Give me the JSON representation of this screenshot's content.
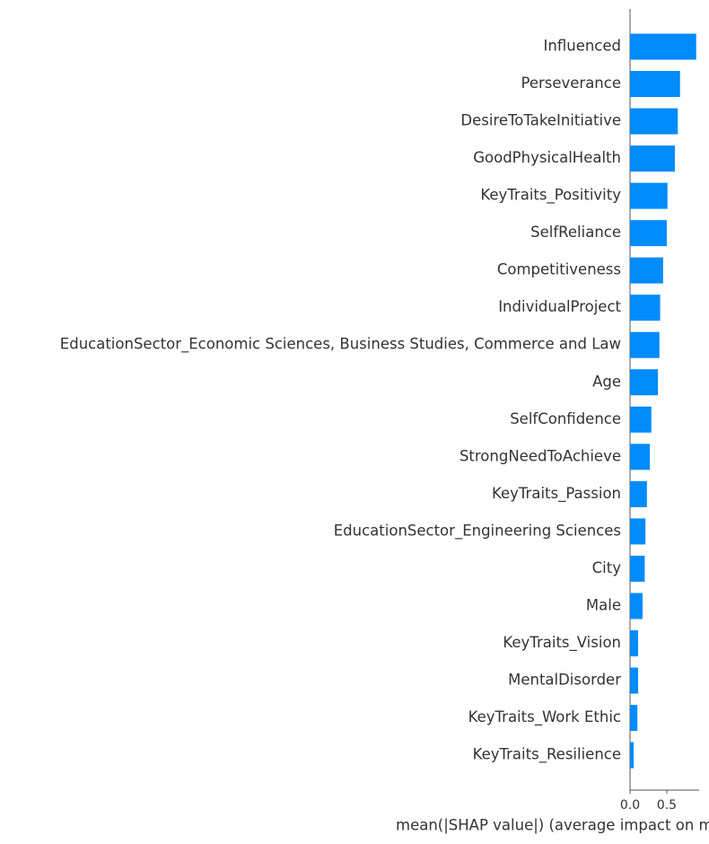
{
  "chart_data": {
    "type": "bar",
    "orientation": "horizontal",
    "categories": [
      "Influenced",
      "Perseverance",
      "DesireToTakeInitiative",
      "GoodPhysicalHealth",
      "KeyTraits_Positivity",
      "SelfReliance",
      "Competitiveness",
      "IndividualProject",
      "EducationSector_Economic Sciences, Business Studies, Commerce and Law",
      "Age",
      "SelfConfidence",
      "StrongNeedToAchieve",
      "KeyTraits_Passion",
      "EducationSector_Engineering Sciences",
      "City",
      "Male",
      "KeyTraits_Vision",
      "MentalDisorder",
      "KeyTraits_Work Ethic",
      "KeyTraits_Resilience"
    ],
    "values": [
      0.9,
      0.68,
      0.65,
      0.61,
      0.51,
      0.5,
      0.45,
      0.41,
      0.4,
      0.38,
      0.29,
      0.27,
      0.23,
      0.21,
      0.2,
      0.17,
      0.11,
      0.11,
      0.1,
      0.05
    ],
    "color": "#008bfb",
    "x_label": "mean(|SHAP value|) (average impact on model output magnitude)",
    "xlim": [
      0,
      0.94
    ],
    "xticks": [
      {
        "value": 0,
        "label": "0.0"
      },
      0.5
    ]
  }
}
